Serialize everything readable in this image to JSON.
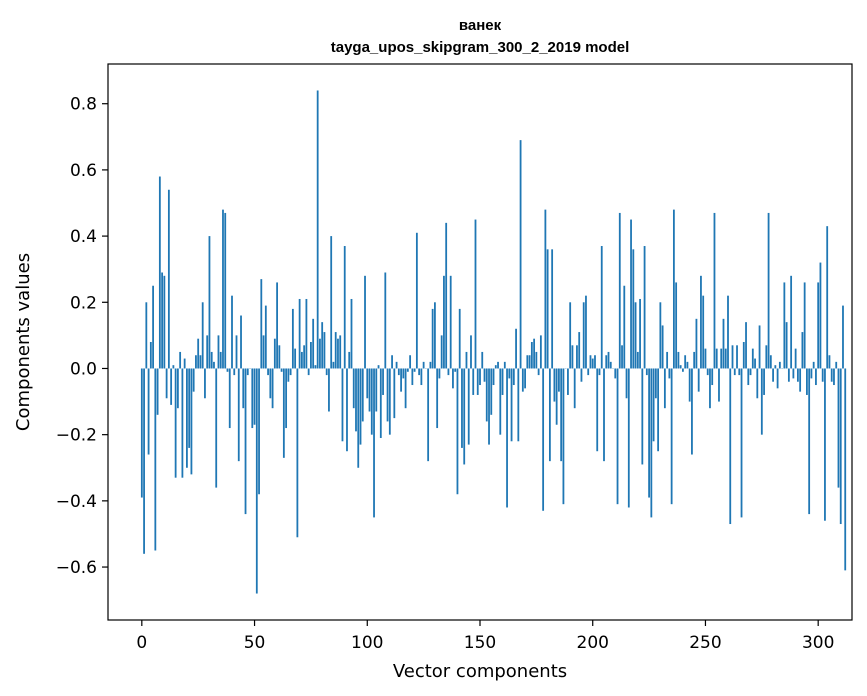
{
  "chart_data": {
    "type": "bar",
    "title": "ванек",
    "subtitle": "tayga_upos_skipgram_300_2_2019 model",
    "xlabel": "Vector components",
    "ylabel": "Components values",
    "xlim": [
      -15,
      315
    ],
    "ylim": [
      -0.76,
      0.92
    ],
    "xticks": [
      0,
      50,
      100,
      150,
      200,
      250,
      300
    ],
    "yticks": [
      -0.6,
      -0.4,
      -0.2,
      0.0,
      0.2,
      0.4,
      0.6,
      0.8
    ],
    "ytick_labels": [
      "−0.6",
      "−0.4",
      "−0.2",
      "0.0",
      "0.2",
      "0.4",
      "0.6",
      "0.8"
    ],
    "bar_color": "#1f77b4",
    "values": [
      -0.39,
      -0.56,
      0.2,
      -0.26,
      0.08,
      0.25,
      -0.55,
      -0.14,
      0.58,
      0.29,
      0.28,
      -0.09,
      0.54,
      -0.11,
      0.01,
      -0.33,
      -0.12,
      0.05,
      -0.33,
      0.03,
      -0.3,
      -0.24,
      -0.32,
      -0.07,
      0.04,
      0.09,
      0.04,
      0.2,
      -0.09,
      0.1,
      0.4,
      0.05,
      0.02,
      -0.36,
      0.1,
      0.05,
      0.48,
      0.47,
      -0.01,
      -0.18,
      0.22,
      -0.02,
      0.1,
      -0.28,
      0.16,
      -0.12,
      -0.44,
      -0.02,
      0.0,
      -0.18,
      -0.17,
      -0.68,
      -0.38,
      0.27,
      0.1,
      0.19,
      -0.02,
      -0.09,
      -0.12,
      0.09,
      0.26,
      0.07,
      -0.01,
      -0.27,
      -0.18,
      -0.04,
      -0.02,
      0.18,
      0.06,
      -0.51,
      0.21,
      0.05,
      0.07,
      0.21,
      -0.02,
      0.08,
      0.15,
      0.01,
      0.84,
      0.09,
      0.14,
      0.11,
      -0.02,
      -0.13,
      0.4,
      0.02,
      0.11,
      0.09,
      0.1,
      -0.22,
      0.37,
      -0.25,
      0.05,
      0.21,
      -0.12,
      -0.19,
      -0.3,
      -0.23,
      -0.16,
      0.28,
      -0.09,
      -0.13,
      -0.2,
      -0.45,
      -0.13,
      0.01,
      -0.21,
      -0.08,
      0.29,
      -0.16,
      -0.2,
      0.04,
      -0.15,
      0.02,
      -0.02,
      -0.07,
      -0.03,
      -0.12,
      -0.01,
      0.04,
      -0.05,
      -0.01,
      0.41,
      -0.02,
      -0.05,
      0.02,
      0.0,
      -0.28,
      0.02,
      0.18,
      0.2,
      -0.18,
      -0.03,
      0.1,
      0.28,
      0.44,
      -0.02,
      0.28,
      -0.06,
      -0.01,
      -0.38,
      0.18,
      -0.24,
      -0.29,
      0.05,
      -0.23,
      0.1,
      -0.08,
      0.45,
      -0.08,
      -0.05,
      0.05,
      -0.04,
      -0.16,
      -0.23,
      -0.14,
      -0.05,
      0.01,
      0.02,
      -0.2,
      -0.08,
      0.02,
      -0.42,
      -0.03,
      -0.22,
      -0.05,
      0.12,
      -0.22,
      0.69,
      -0.07,
      -0.06,
      0.04,
      0.04,
      0.08,
      0.09,
      0.05,
      -0.02,
      0.1,
      -0.43,
      0.48,
      0.36,
      -0.28,
      0.36,
      -0.1,
      -0.17,
      -0.07,
      -0.28,
      -0.41,
      0.0,
      -0.08,
      0.2,
      0.07,
      -0.12,
      0.07,
      0.11,
      -0.04,
      0.2,
      0.22,
      -0.02,
      0.04,
      0.03,
      0.04,
      -0.25,
      -0.02,
      0.37,
      -0.28,
      0.04,
      0.05,
      0.02,
      0.0,
      -0.03,
      -0.41,
      0.47,
      0.07,
      0.25,
      -0.09,
      -0.42,
      0.45,
      0.36,
      0.2,
      0.05,
      0.21,
      -0.29,
      0.37,
      -0.02,
      -0.39,
      -0.45,
      -0.22,
      -0.09,
      -0.25,
      0.2,
      0.13,
      -0.12,
      0.05,
      -0.03,
      -0.41,
      0.48,
      0.26,
      0.05,
      0.01,
      -0.01,
      0.04,
      0.02,
      -0.1,
      -0.26,
      0.05,
      0.15,
      -0.07,
      0.28,
      0.22,
      0.06,
      -0.02,
      -0.12,
      -0.05,
      0.47,
      0.06,
      -0.1,
      0.06,
      0.15,
      0.06,
      0.22,
      -0.47,
      0.07,
      -0.02,
      0.07,
      -0.02,
      -0.45,
      0.08,
      0.14,
      -0.05,
      -0.02,
      0.06,
      0.03,
      -0.09,
      0.13,
      -0.2,
      -0.08,
      0.07,
      0.47,
      0.04,
      -0.04,
      0.01,
      -0.06,
      0.02,
      0.0,
      0.26,
      0.14,
      -0.04,
      0.28,
      -0.03,
      0.06,
      -0.04,
      -0.07,
      0.11,
      0.26,
      -0.08,
      -0.44,
      -0.03,
      0.02,
      -0.05,
      0.26,
      0.32,
      -0.04,
      -0.46,
      0.43,
      0.04,
      -0.04,
      -0.05,
      0.02,
      -0.36,
      -0.47,
      0.19,
      -0.61
    ]
  }
}
